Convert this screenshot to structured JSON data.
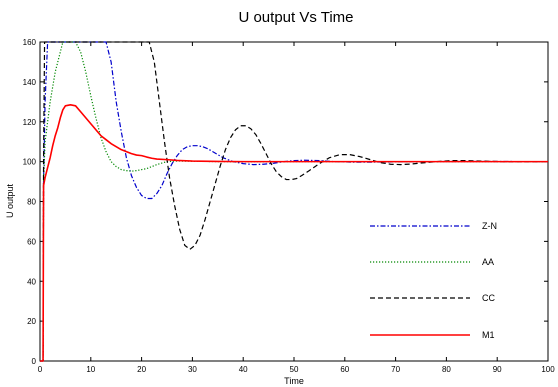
{
  "chart_data": {
    "type": "line",
    "title": "U output Vs Time",
    "xlabel": "Time",
    "ylabel": "U  output",
    "xlim": [
      0,
      100
    ],
    "ylim": [
      0,
      160
    ],
    "x_ticks": [
      0,
      10,
      20,
      30,
      40,
      50,
      60,
      70,
      80,
      90,
      100
    ],
    "y_ticks": [
      0,
      20,
      40,
      60,
      80,
      100,
      120,
      140,
      160
    ],
    "grid": false,
    "legend_position": "right",
    "series": [
      {
        "name": "Z-N",
        "color": "#0000cc",
        "dash": "dash-dot",
        "points": [
          [
            0,
            0
          ],
          [
            0.6,
            0
          ],
          [
            0.7,
            90
          ],
          [
            1,
            130
          ],
          [
            1.5,
            160
          ],
          [
            13,
            160
          ],
          [
            14,
            150
          ],
          [
            15,
            130
          ],
          [
            16,
            115
          ],
          [
            17,
            102
          ],
          [
            18,
            93
          ],
          [
            19,
            87
          ],
          [
            20,
            83
          ],
          [
            21,
            81.5
          ],
          [
            22,
            81.5
          ],
          [
            23,
            84
          ],
          [
            24,
            88
          ],
          [
            25,
            94
          ],
          [
            26,
            99
          ],
          [
            27,
            103
          ],
          [
            28,
            106
          ],
          [
            29,
            107.5
          ],
          [
            30,
            108
          ],
          [
            31,
            108
          ],
          [
            32,
            107.5
          ],
          [
            33,
            106.5
          ],
          [
            34,
            105
          ],
          [
            35,
            103.5
          ],
          [
            36,
            102
          ],
          [
            37,
            101
          ],
          [
            38,
            100
          ],
          [
            40,
            99
          ],
          [
            42,
            98.5
          ],
          [
            44,
            98.7
          ],
          [
            46,
            99.2
          ],
          [
            48,
            100
          ],
          [
            50,
            100.5
          ],
          [
            52,
            100.7
          ],
          [
            55,
            100.5
          ],
          [
            58,
            100
          ],
          [
            62,
            99.7
          ],
          [
            68,
            99.8
          ],
          [
            75,
            100
          ],
          [
            85,
            100.1
          ],
          [
            100,
            100
          ]
        ]
      },
      {
        "name": "AA",
        "color": "#008800",
        "dash": "dotted",
        "points": [
          [
            0,
            0
          ],
          [
            0.6,
            0
          ],
          [
            0.7,
            90
          ],
          [
            1,
            110
          ],
          [
            1.5,
            120
          ],
          [
            2,
            130
          ],
          [
            3,
            145
          ],
          [
            4,
            155
          ],
          [
            4.5,
            160
          ],
          [
            7,
            160
          ],
          [
            8,
            155
          ],
          [
            9,
            145
          ],
          [
            10,
            133
          ],
          [
            11,
            122
          ],
          [
            12,
            112
          ],
          [
            13,
            105
          ],
          [
            14,
            100
          ],
          [
            15,
            97.5
          ],
          [
            16,
            96
          ],
          [
            17,
            95.5
          ],
          [
            18,
            95.2
          ],
          [
            19,
            95.5
          ],
          [
            20,
            96
          ],
          [
            21,
            96.5
          ],
          [
            22,
            97.5
          ],
          [
            23,
            98.5
          ],
          [
            24,
            99.3
          ],
          [
            25,
            100
          ],
          [
            27,
            100.3
          ],
          [
            30,
            100.2
          ],
          [
            35,
            100
          ],
          [
            40,
            99.9
          ],
          [
            50,
            100
          ],
          [
            100,
            100
          ]
        ]
      },
      {
        "name": "CC",
        "color": "#000000",
        "dash": "dashed",
        "points": [
          [
            0,
            0
          ],
          [
            0.6,
            0
          ],
          [
            0.7,
            100
          ],
          [
            0.9,
            160
          ],
          [
            21.5,
            160
          ],
          [
            22.5,
            150
          ],
          [
            23.5,
            130
          ],
          [
            24.5,
            110
          ],
          [
            25.5,
            92
          ],
          [
            26.5,
            78
          ],
          [
            27.5,
            66
          ],
          [
            28.5,
            58
          ],
          [
            29.5,
            56
          ],
          [
            30.5,
            58
          ],
          [
            31.5,
            63
          ],
          [
            32.5,
            71
          ],
          [
            33.5,
            80
          ],
          [
            34.5,
            89
          ],
          [
            35.5,
            98
          ],
          [
            36.5,
            106
          ],
          [
            37.5,
            112
          ],
          [
            38.5,
            116
          ],
          [
            39.5,
            118
          ],
          [
            40.5,
            118
          ],
          [
            41.5,
            116.5
          ],
          [
            42.5,
            113.5
          ],
          [
            43.5,
            109
          ],
          [
            44.5,
            104
          ],
          [
            45.5,
            99
          ],
          [
            46.5,
            95
          ],
          [
            47.5,
            92.5
          ],
          [
            48.5,
            91
          ],
          [
            49.5,
            91
          ],
          [
            50.5,
            91.5
          ],
          [
            51.5,
            93
          ],
          [
            53,
            95.5
          ],
          [
            55,
            99
          ],
          [
            57,
            102
          ],
          [
            59,
            103.5
          ],
          [
            61,
            103.5
          ],
          [
            63,
            102.5
          ],
          [
            65,
            101
          ],
          [
            67,
            99.5
          ],
          [
            69,
            98.7
          ],
          [
            71,
            98.5
          ],
          [
            73,
            98.8
          ],
          [
            75,
            99.3
          ],
          [
            78,
            100
          ],
          [
            81,
            100.5
          ],
          [
            84,
            100.5
          ],
          [
            88,
            100.2
          ],
          [
            92,
            99.9
          ],
          [
            96,
            99.9
          ],
          [
            100,
            100
          ]
        ]
      },
      {
        "name": "M1",
        "color": "#ff0000",
        "dash": "solid",
        "points": [
          [
            0,
            0
          ],
          [
            0.6,
            0
          ],
          [
            0.7,
            88
          ],
          [
            1,
            92
          ],
          [
            1.5,
            97
          ],
          [
            2,
            102
          ],
          [
            2.5,
            108
          ],
          [
            3,
            113
          ],
          [
            3.5,
            117
          ],
          [
            4,
            122
          ],
          [
            4.5,
            126
          ],
          [
            5,
            128
          ],
          [
            6,
            128.5
          ],
          [
            7,
            128
          ],
          [
            8,
            125
          ],
          [
            9,
            122
          ],
          [
            10,
            119
          ],
          [
            11,
            116
          ],
          [
            12,
            113
          ],
          [
            13,
            111
          ],
          [
            14,
            109
          ],
          [
            15,
            107.5
          ],
          [
            16,
            106
          ],
          [
            17,
            105
          ],
          [
            18,
            104
          ],
          [
            19,
            103.3
          ],
          [
            20,
            103
          ],
          [
            21,
            102.3
          ],
          [
            22,
            101.7
          ],
          [
            23,
            101.3
          ],
          [
            25,
            101
          ],
          [
            27,
            100.6
          ],
          [
            30,
            100.3
          ],
          [
            35,
            100.1
          ],
          [
            40,
            100
          ],
          [
            100,
            100
          ]
        ]
      }
    ]
  }
}
